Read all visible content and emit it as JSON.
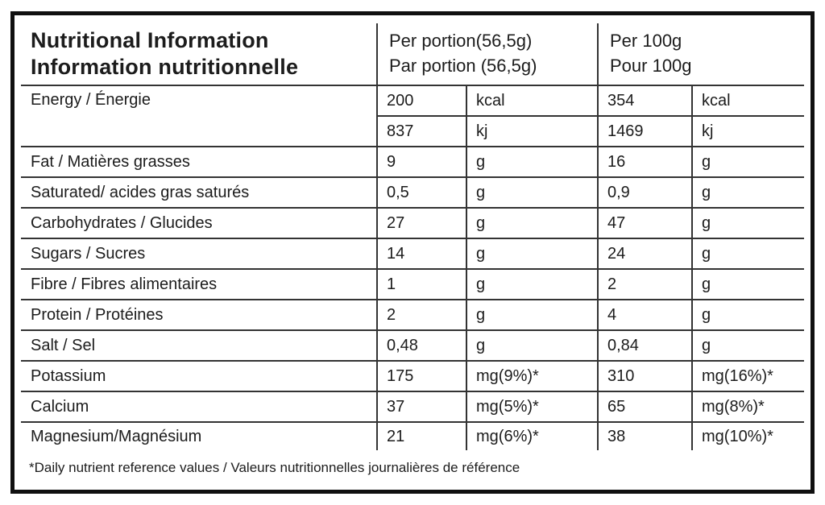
{
  "nutrition_table": {
    "title_en": "Nutritional Information",
    "title_fr": "Information nutritionnelle",
    "portion_header_en": "Per portion(56,5g)",
    "portion_header_fr": "Par portion (56,5g)",
    "per100_header_en": "Per 100g",
    "per100_header_fr": "Pour 100g",
    "energy": {
      "label": "Energy / Énergie",
      "sub_rows": [
        {
          "portion_value": "200",
          "portion_unit": "kcal",
          "per100_value": "354",
          "per100_unit": "kcal"
        },
        {
          "portion_value": "837",
          "portion_unit": "kj",
          "per100_value": "1469",
          "per100_unit": "kj"
        }
      ]
    },
    "rows": [
      {
        "label": "Fat / Matières grasses",
        "portion_value": "9",
        "portion_unit": "g",
        "per100_value": "16",
        "per100_unit": "g"
      },
      {
        "label": "Saturated/ acides gras saturés",
        "portion_value": "0,5",
        "portion_unit": "g",
        "per100_value": "0,9",
        "per100_unit": "g"
      },
      {
        "label": "Carbohydrates / Glucides",
        "portion_value": "27",
        "portion_unit": "g",
        "per100_value": "47",
        "per100_unit": "g"
      },
      {
        "label": "Sugars / Sucres",
        "portion_value": "14",
        "portion_unit": "g",
        "per100_value": "24",
        "per100_unit": "g"
      },
      {
        "label": "Fibre / Fibres alimentaires",
        "portion_value": "1",
        "portion_unit": "g",
        "per100_value": "2",
        "per100_unit": "g"
      },
      {
        "label": "Protein / Protéines",
        "portion_value": "2",
        "portion_unit": "g",
        "per100_value": "4",
        "per100_unit": "g"
      },
      {
        "label": "Salt / Sel",
        "portion_value": "0,48",
        "portion_unit": "g",
        "per100_value": "0,84",
        "per100_unit": "g"
      },
      {
        "label": "Potassium",
        "portion_value": "175",
        "portion_unit": "mg(9%)*",
        "per100_value": "310",
        "per100_unit": "mg(16%)*"
      },
      {
        "label": "Calcium",
        "portion_value": "37",
        "portion_unit": "mg(5%)*",
        "per100_value": "65",
        "per100_unit": "mg(8%)*"
      },
      {
        "label": "Magnesium/Magnésium",
        "portion_value": "21",
        "portion_unit": "mg(6%)*",
        "per100_value": "38",
        "per100_unit": "mg(10%)*"
      }
    ],
    "footnote": "*Daily nutrient reference values / Valeurs nutritionnelles journalières de référence"
  },
  "colors": {
    "outer_border": "#101010",
    "inner_line": "#333333",
    "text": "#1c1c1c",
    "background": "#ffffff"
  }
}
